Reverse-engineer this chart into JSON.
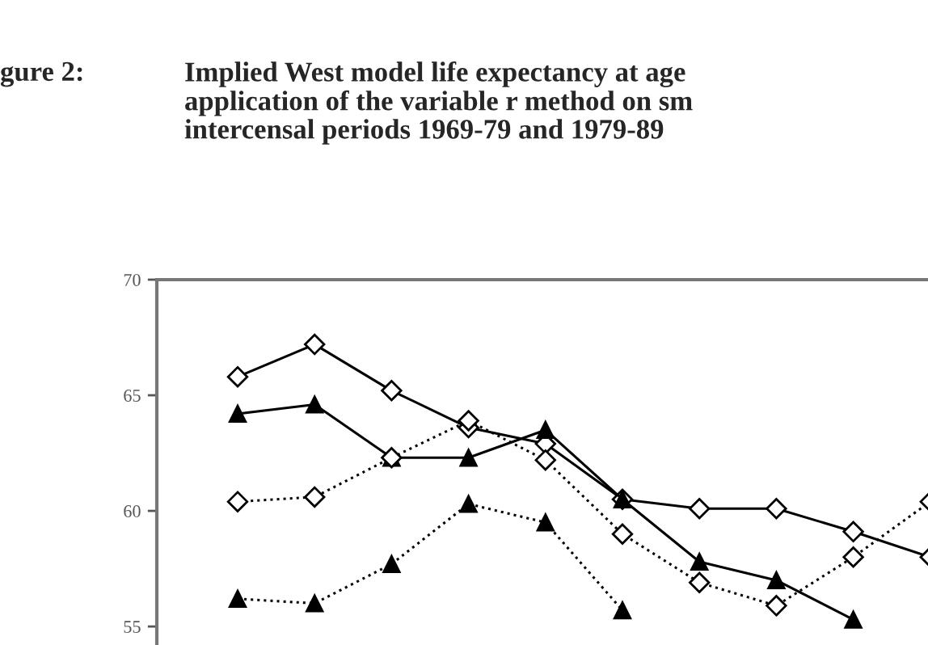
{
  "chart_data": {
    "type": "line",
    "title": "Implied West model life expectancy at age\napplication of the variable r method on sm\nintercensal periods 1969-79 and 1979-89",
    "annotations": [
      "gure 2:"
    ],
    "categories": [
      null,
      null,
      null,
      null,
      null,
      null,
      null,
      null,
      null,
      null
    ],
    "ylim": [
      54.2,
      70
    ],
    "yticks": [
      55,
      60,
      65,
      70
    ],
    "grid": false,
    "series": [
      {
        "color": "#000000",
        "marker": "diamond",
        "line_style": "solid",
        "values": [
          65.8,
          67.2,
          65.2,
          63.6,
          62.9,
          60.5,
          60.1,
          60.1,
          59.1,
          58.0
        ]
      },
      {
        "color": "#000000",
        "marker": "triangle",
        "line_style": "solid",
        "values": [
          64.2,
          64.6,
          62.3,
          62.3,
          63.5,
          60.5,
          57.8,
          57.0,
          55.3,
          null
        ]
      },
      {
        "color": "#000000",
        "marker": "diamond",
        "line_style": "dotted",
        "values": [
          60.4,
          60.6,
          62.3,
          63.9,
          62.2,
          59.0,
          56.9,
          55.9,
          58.0,
          60.4
        ]
      },
      {
        "color": "#000000",
        "marker": "triangle",
        "line_style": "dotted",
        "values": [
          56.2,
          56.0,
          57.7,
          60.3,
          59.5,
          55.7,
          null,
          null,
          null,
          null
        ]
      }
    ]
  }
}
